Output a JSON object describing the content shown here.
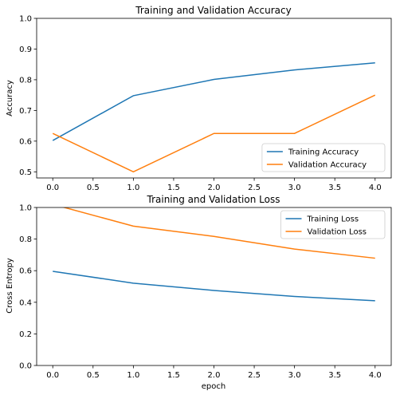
{
  "chart_data": [
    {
      "type": "line",
      "title": "Training and Validation Accuracy",
      "xlabel": "",
      "ylabel": "Accuracy",
      "x": [
        0,
        1,
        2,
        3,
        4
      ],
      "xlim": [
        -0.2,
        4.2
      ],
      "ylim": [
        0.48,
        1.0
      ],
      "xticks": [
        "0.0",
        "0.5",
        "1.0",
        "1.5",
        "2.0",
        "2.5",
        "3.0",
        "3.5",
        "4.0"
      ],
      "yticks": [
        "0.5",
        "0.6",
        "0.7",
        "0.8",
        "0.9",
        "1.0"
      ],
      "grid": false,
      "legend_position": "lower-right",
      "series": [
        {
          "name": "Training Accuracy",
          "color": "#1f77b4",
          "values": [
            0.602,
            0.748,
            0.801,
            0.832,
            0.855
          ]
        },
        {
          "name": "Validation Accuracy",
          "color": "#ff7f0e",
          "values": [
            0.625,
            0.5,
            0.625,
            0.625,
            0.75
          ]
        }
      ]
    },
    {
      "type": "line",
      "title": "Training and Validation Loss",
      "xlabel": "epoch",
      "ylabel": "Cross Entropy",
      "x": [
        0,
        1,
        2,
        3,
        4
      ],
      "xlim": [
        -0.2,
        4.2
      ],
      "ylim": [
        0.0,
        1.0
      ],
      "xticks": [
        "0.0",
        "0.5",
        "1.0",
        "1.5",
        "2.0",
        "2.5",
        "3.0",
        "3.5",
        "4.0"
      ],
      "yticks": [
        "0.0",
        "0.2",
        "0.4",
        "0.6",
        "0.8",
        "1.0"
      ],
      "grid": false,
      "legend_position": "upper-right",
      "series": [
        {
          "name": "Training Loss",
          "color": "#1f77b4",
          "values": [
            0.596,
            0.521,
            0.475,
            0.437,
            0.41
          ]
        },
        {
          "name": "Validation Loss",
          "color": "#ff7f0e",
          "values": [
            1.02,
            0.882,
            0.817,
            0.737,
            0.679
          ]
        }
      ]
    }
  ]
}
